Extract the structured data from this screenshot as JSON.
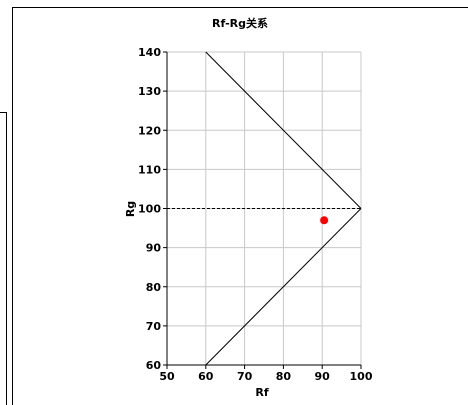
{
  "chart_data": {
    "type": "scatter",
    "title": "Rf-Rg关系",
    "xlabel": "Rf",
    "ylabel": "Rg",
    "xlim": [
      50,
      100
    ],
    "ylim": [
      60,
      140
    ],
    "x_ticks": [
      50,
      60,
      70,
      80,
      90,
      100
    ],
    "y_ticks": [
      60,
      70,
      80,
      90,
      100,
      110,
      120,
      130,
      140
    ],
    "grid": true,
    "boundary_lines": [
      {
        "x": [
          60,
          100
        ],
        "y": [
          140,
          100
        ],
        "color": "#000000",
        "style": "solid"
      },
      {
        "x": [
          60,
          100
        ],
        "y": [
          60,
          100
        ],
        "color": "#000000",
        "style": "solid"
      }
    ],
    "reference_line": {
      "y": 100,
      "x": [
        50,
        100
      ],
      "color": "#000000",
      "style": "dashed"
    },
    "points": [
      {
        "x": 90.5,
        "y": 97,
        "color": "#ff0000"
      }
    ]
  }
}
